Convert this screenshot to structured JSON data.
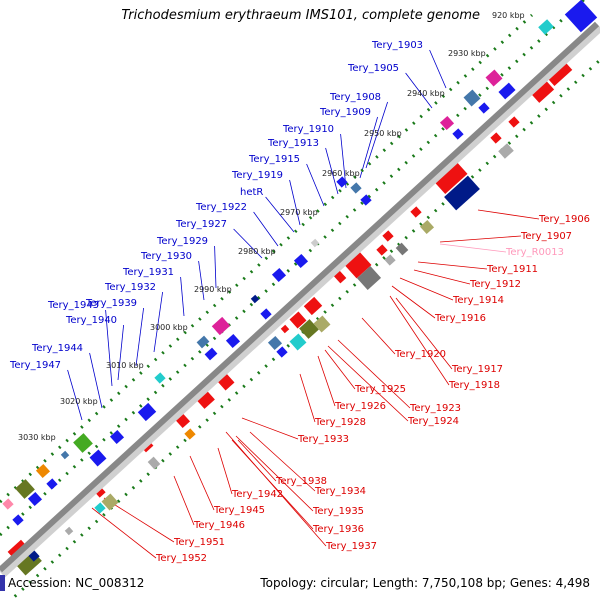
{
  "title": "Trichodesmium erythraeum IMS101, complete genome",
  "footer": {
    "accession": "Accession: NC_008312",
    "topology": "Topology: circular; Length: 7,750,108 bp; Genes: 4,498"
  },
  "colors": {
    "backbone": "#8a8a8a",
    "tick_dots": "#1a7a1a",
    "left_label": "#0000cc",
    "right_label": "#dd0000",
    "rna_label": "#ff99bb",
    "forward_arrow": "#ee0000",
    "reverse_arrow": "#1515dd"
  },
  "kbp_marks": [
    "920 kbp",
    "2930 kbp",
    "2940 kbp",
    "2950 kbp",
    "2960 kbp",
    "2970 kbp",
    "2980 kbp",
    "2990 kbp",
    "3000 kbp",
    "3010 kbp",
    "3020 kbp",
    "3030 kbp"
  ],
  "left_labels": [
    "Tery_1903",
    "Tery_1905",
    "Tery_1908",
    "Tery_1909",
    "Tery_1910",
    "Tery_1913",
    "Tery_1915",
    "Tery_1919",
    "hetR",
    "Tery_1922",
    "Tery_1927",
    "Tery_1929",
    "Tery_1930",
    "Tery_1931",
    "Tery_1932",
    "Tery_1939",
    "Tery_1943",
    "Tery_1940",
    "Tery_1944",
    "Tery_1947"
  ],
  "right_labels": [
    "Tery_1906",
    "Tery_1907",
    "Tery_R0013",
    "Tery_1911",
    "Tery_1912",
    "Tery_1914",
    "Tery_1916",
    "Tery_1920",
    "Tery_1917",
    "Tery_1918",
    "Tery_1925",
    "Tery_1926",
    "Tery_1923",
    "Tery_1928",
    "Tery_1924",
    "Tery_1933",
    "Tery_1938",
    "Tery_1934",
    "Tery_1942",
    "Tery_1945",
    "Tery_1935",
    "Tery_1946",
    "Tery_1936",
    "Tery_1937",
    "Tery_1951",
    "Tery_1952"
  ]
}
